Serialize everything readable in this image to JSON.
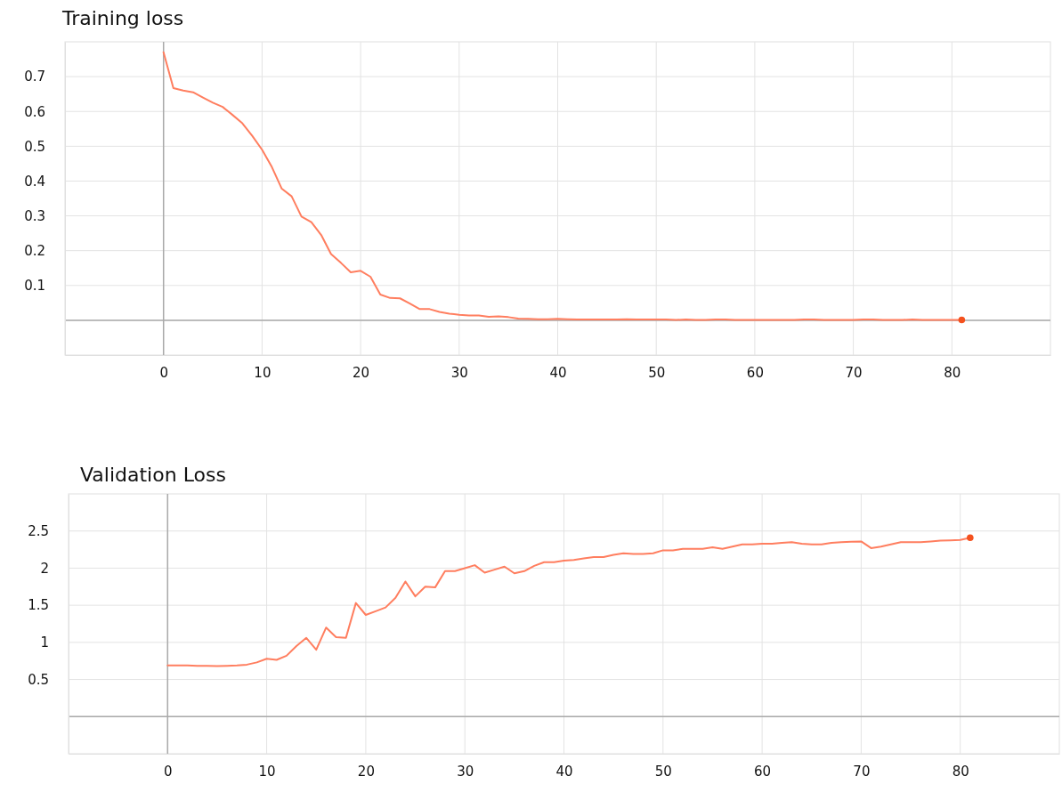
{
  "chart_data": [
    {
      "type": "line",
      "title": "Training loss",
      "xlim": [
        -10,
        90
      ],
      "xticks": [
        0,
        10,
        20,
        30,
        40,
        50,
        60,
        70,
        80
      ],
      "ylim": [
        -0.1,
        0.8
      ],
      "yticks": [
        {
          "value": 0,
          "label": null
        },
        0.1,
        0.2,
        0.3,
        0.4,
        0.5,
        0.6,
        0.7
      ],
      "grid": true,
      "series": [
        {
          "color": "#ff7e5f",
          "x": [
            0,
            1,
            2,
            3,
            4,
            5,
            6,
            7,
            8,
            9,
            10,
            11,
            12,
            13,
            14,
            15,
            16,
            17,
            18,
            19,
            20,
            21,
            22,
            23,
            24,
            25,
            26,
            27,
            28,
            29,
            30,
            31,
            32,
            33,
            34,
            35,
            36,
            37,
            38,
            39,
            40,
            41,
            42,
            43,
            44,
            45,
            46,
            47,
            48,
            49,
            50,
            51,
            52,
            53,
            54,
            55,
            56,
            57,
            58,
            59,
            60,
            61,
            62,
            63,
            64,
            65,
            66,
            67,
            68,
            69,
            70,
            71,
            72,
            73,
            74,
            75,
            76,
            77,
            78,
            79,
            80,
            81
          ],
          "values": [
            0.77,
            0.667,
            0.66,
            0.655,
            0.64,
            0.625,
            0.613,
            0.59,
            0.566,
            0.53,
            0.49,
            0.44,
            0.378,
            0.356,
            0.298,
            0.282,
            0.245,
            0.19,
            0.165,
            0.138,
            0.142,
            0.125,
            0.074,
            0.064,
            0.063,
            0.048,
            0.032,
            0.032,
            0.024,
            0.019,
            0.016,
            0.014,
            0.014,
            0.01,
            0.011,
            0.009,
            0.005,
            0.004,
            0.003,
            0.003,
            0.004,
            0.003,
            0.002,
            0.002,
            0.002,
            0.002,
            0.002,
            0.003,
            0.002,
            0.002,
            0.002,
            0.002,
            0.001,
            0.002,
            0.001,
            0.001,
            0.002,
            0.002,
            0.001,
            0.001,
            0.001,
            0.001,
            0.001,
            0.001,
            0.001,
            0.002,
            0.002,
            0.001,
            0.001,
            0.001,
            0.001,
            0.002,
            0.002,
            0.001,
            0.001,
            0.001,
            0.002,
            0.001,
            0.001,
            0.001,
            0.001,
            0.001
          ]
        },
        {
          "type": "scatter",
          "color": "#f4511e",
          "marker": "circle",
          "x": [
            81
          ],
          "values": [
            0.001
          ]
        }
      ]
    },
    {
      "type": "line",
      "title": "Validation Loss",
      "xlim": [
        -10,
        90
      ],
      "xticks": [
        0,
        10,
        20,
        30,
        40,
        50,
        60,
        70,
        80
      ],
      "ylim": [
        -0.5,
        3
      ],
      "yticks": [
        {
          "value": 0,
          "label": null
        },
        0.5,
        1,
        1.5,
        2,
        2.5
      ],
      "grid": true,
      "series": [
        {
          "color": "#ff7e5f",
          "x": [
            0,
            1,
            2,
            3,
            4,
            5,
            6,
            7,
            8,
            9,
            10,
            11,
            12,
            13,
            14,
            15,
            16,
            17,
            18,
            19,
            20,
            21,
            22,
            23,
            24,
            25,
            26,
            27,
            28,
            29,
            30,
            31,
            32,
            33,
            34,
            35,
            36,
            37,
            38,
            39,
            40,
            41,
            42,
            43,
            44,
            45,
            46,
            47,
            48,
            49,
            50,
            51,
            52,
            53,
            54,
            55,
            56,
            57,
            58,
            59,
            60,
            61,
            62,
            63,
            64,
            65,
            66,
            67,
            68,
            69,
            70,
            71,
            72,
            73,
            74,
            75,
            76,
            77,
            78,
            79,
            80,
            81
          ],
          "values": [
            0.69,
            0.69,
            0.69,
            0.685,
            0.685,
            0.68,
            0.685,
            0.69,
            0.7,
            0.73,
            0.78,
            0.765,
            0.82,
            0.95,
            1.06,
            0.9,
            1.2,
            1.07,
            1.06,
            1.53,
            1.37,
            1.42,
            1.47,
            1.6,
            1.82,
            1.62,
            1.75,
            1.74,
            1.96,
            1.96,
            2.0,
            2.04,
            1.94,
            1.98,
            2.02,
            1.93,
            1.96,
            2.03,
            2.08,
            2.08,
            2.1,
            2.11,
            2.13,
            2.15,
            2.15,
            2.18,
            2.2,
            2.19,
            2.19,
            2.2,
            2.24,
            2.24,
            2.26,
            2.26,
            2.26,
            2.28,
            2.26,
            2.29,
            2.32,
            2.32,
            2.33,
            2.33,
            2.34,
            2.35,
            2.33,
            2.32,
            2.32,
            2.34,
            2.35,
            2.355,
            2.36,
            2.27,
            2.29,
            2.32,
            2.35,
            2.35,
            2.35,
            2.36,
            2.37,
            2.375,
            2.38,
            2.41
          ]
        },
        {
          "type": "scatter",
          "color": "#f4511e",
          "marker": "circle",
          "x": [
            81
          ],
          "values": [
            2.41
          ]
        }
      ]
    }
  ]
}
